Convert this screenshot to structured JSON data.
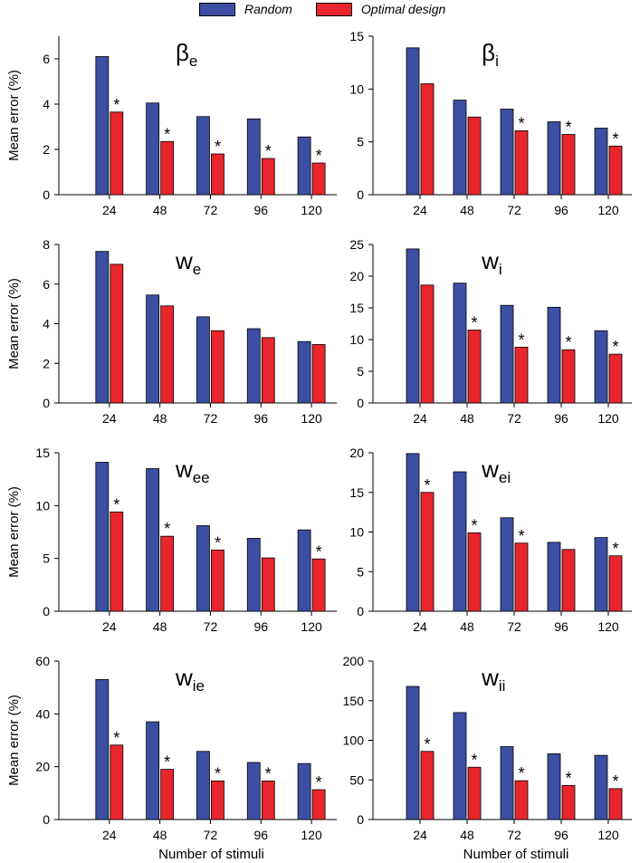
{
  "colors": {
    "random": "#3d4fa3",
    "optimal": "#e8262b"
  },
  "legend": {
    "random_label": "Random",
    "optimal_label": "Optimal design"
  },
  "chart_data": [
    {
      "type": "bar",
      "title_base": "β",
      "title_sub": "e",
      "categories": [
        "24",
        "48",
        "72",
        "96",
        "120"
      ],
      "series": [
        {
          "name": "Random",
          "values": [
            6.1,
            4.05,
            3.45,
            3.35,
            2.55
          ]
        },
        {
          "name": "Optimal design",
          "values": [
            3.65,
            2.35,
            1.8,
            1.6,
            1.4
          ]
        }
      ],
      "significant": [
        true,
        true,
        true,
        true,
        true
      ],
      "ylim": [
        0,
        7
      ],
      "yticks": [
        0,
        2,
        4,
        6
      ],
      "ylabel": "Mean error (%)",
      "xlabel": ""
    },
    {
      "type": "bar",
      "title_base": "β",
      "title_sub": "i",
      "categories": [
        "24",
        "48",
        "72",
        "96",
        "120"
      ],
      "series": [
        {
          "name": "Random",
          "values": [
            13.9,
            8.95,
            8.1,
            6.9,
            6.3
          ]
        },
        {
          "name": "Optimal design",
          "values": [
            10.5,
            7.35,
            6.05,
            5.7,
            4.6
          ]
        }
      ],
      "significant": [
        false,
        false,
        true,
        true,
        true
      ],
      "ylim": [
        0,
        15
      ],
      "yticks": [
        0,
        5,
        10,
        15
      ],
      "ylabel": "",
      "xlabel": ""
    },
    {
      "type": "bar",
      "title_base": "w",
      "title_sub": "e",
      "categories": [
        "24",
        "48",
        "72",
        "96",
        "120"
      ],
      "series": [
        {
          "name": "Random",
          "values": [
            7.65,
            5.45,
            4.35,
            3.75,
            3.1
          ]
        },
        {
          "name": "Optimal design",
          "values": [
            7.0,
            4.9,
            3.65,
            3.3,
            2.95
          ]
        }
      ],
      "significant": [
        false,
        false,
        false,
        false,
        false
      ],
      "ylim": [
        0,
        8
      ],
      "yticks": [
        0,
        2,
        4,
        6,
        8
      ],
      "ylabel": "Mean error (%)",
      "xlabel": ""
    },
    {
      "type": "bar",
      "title_base": "w",
      "title_sub": "i",
      "categories": [
        "24",
        "48",
        "72",
        "96",
        "120"
      ],
      "series": [
        {
          "name": "Random",
          "values": [
            24.3,
            18.9,
            15.4,
            15.1,
            11.4
          ]
        },
        {
          "name": "Optimal design",
          "values": [
            18.6,
            11.5,
            8.8,
            8.4,
            7.7
          ]
        }
      ],
      "significant": [
        false,
        true,
        true,
        true,
        true
      ],
      "ylim": [
        0,
        25
      ],
      "yticks": [
        0,
        5,
        10,
        15,
        20,
        25
      ],
      "ylabel": "",
      "xlabel": ""
    },
    {
      "type": "bar",
      "title_base": "w",
      "title_sub": "ee",
      "categories": [
        "24",
        "48",
        "72",
        "96",
        "120"
      ],
      "series": [
        {
          "name": "Random",
          "values": [
            14.1,
            13.5,
            8.1,
            6.9,
            7.7
          ]
        },
        {
          "name": "Optimal design",
          "values": [
            9.4,
            7.1,
            5.8,
            5.05,
            4.95
          ]
        }
      ],
      "significant": [
        true,
        true,
        true,
        false,
        true
      ],
      "ylim": [
        0,
        15
      ],
      "yticks": [
        0,
        5,
        10,
        15
      ],
      "ylabel": "Mean error (%)",
      "xlabel": ""
    },
    {
      "type": "bar",
      "title_base": "w",
      "title_sub": "ei",
      "categories": [
        "24",
        "48",
        "72",
        "96",
        "120"
      ],
      "series": [
        {
          "name": "Random",
          "values": [
            19.9,
            17.6,
            11.8,
            8.7,
            9.3
          ]
        },
        {
          "name": "Optimal design",
          "values": [
            15.0,
            9.9,
            8.6,
            7.8,
            7.0
          ]
        }
      ],
      "significant": [
        true,
        true,
        true,
        false,
        true
      ],
      "ylim": [
        0,
        20
      ],
      "yticks": [
        0,
        5,
        10,
        15,
        20
      ],
      "ylabel": "",
      "xlabel": ""
    },
    {
      "type": "bar",
      "title_base": "w",
      "title_sub": "ie",
      "categories": [
        "24",
        "48",
        "72",
        "96",
        "120"
      ],
      "series": [
        {
          "name": "Random",
          "values": [
            53,
            37,
            25.8,
            21.6,
            21.2
          ]
        },
        {
          "name": "Optimal design",
          "values": [
            28.2,
            19,
            14.6,
            14.6,
            11.3
          ]
        }
      ],
      "significant": [
        true,
        true,
        true,
        true,
        true
      ],
      "ylim": [
        0,
        60
      ],
      "yticks": [
        0,
        20,
        40,
        60
      ],
      "ylabel": "Mean error (%)",
      "xlabel": "Number of stimuli"
    },
    {
      "type": "bar",
      "title_base": "w",
      "title_sub": "ii",
      "categories": [
        "24",
        "48",
        "72",
        "96",
        "120"
      ],
      "series": [
        {
          "name": "Random",
          "values": [
            168,
            135,
            92,
            83,
            81
          ]
        },
        {
          "name": "Optimal design",
          "values": [
            86,
            66,
            49,
            43,
            39
          ]
        }
      ],
      "significant": [
        true,
        true,
        true,
        true,
        true
      ],
      "ylim": [
        0,
        200
      ],
      "yticks": [
        0,
        50,
        100,
        150,
        200
      ],
      "ylabel": "",
      "xlabel": "Number of stimuli"
    }
  ]
}
